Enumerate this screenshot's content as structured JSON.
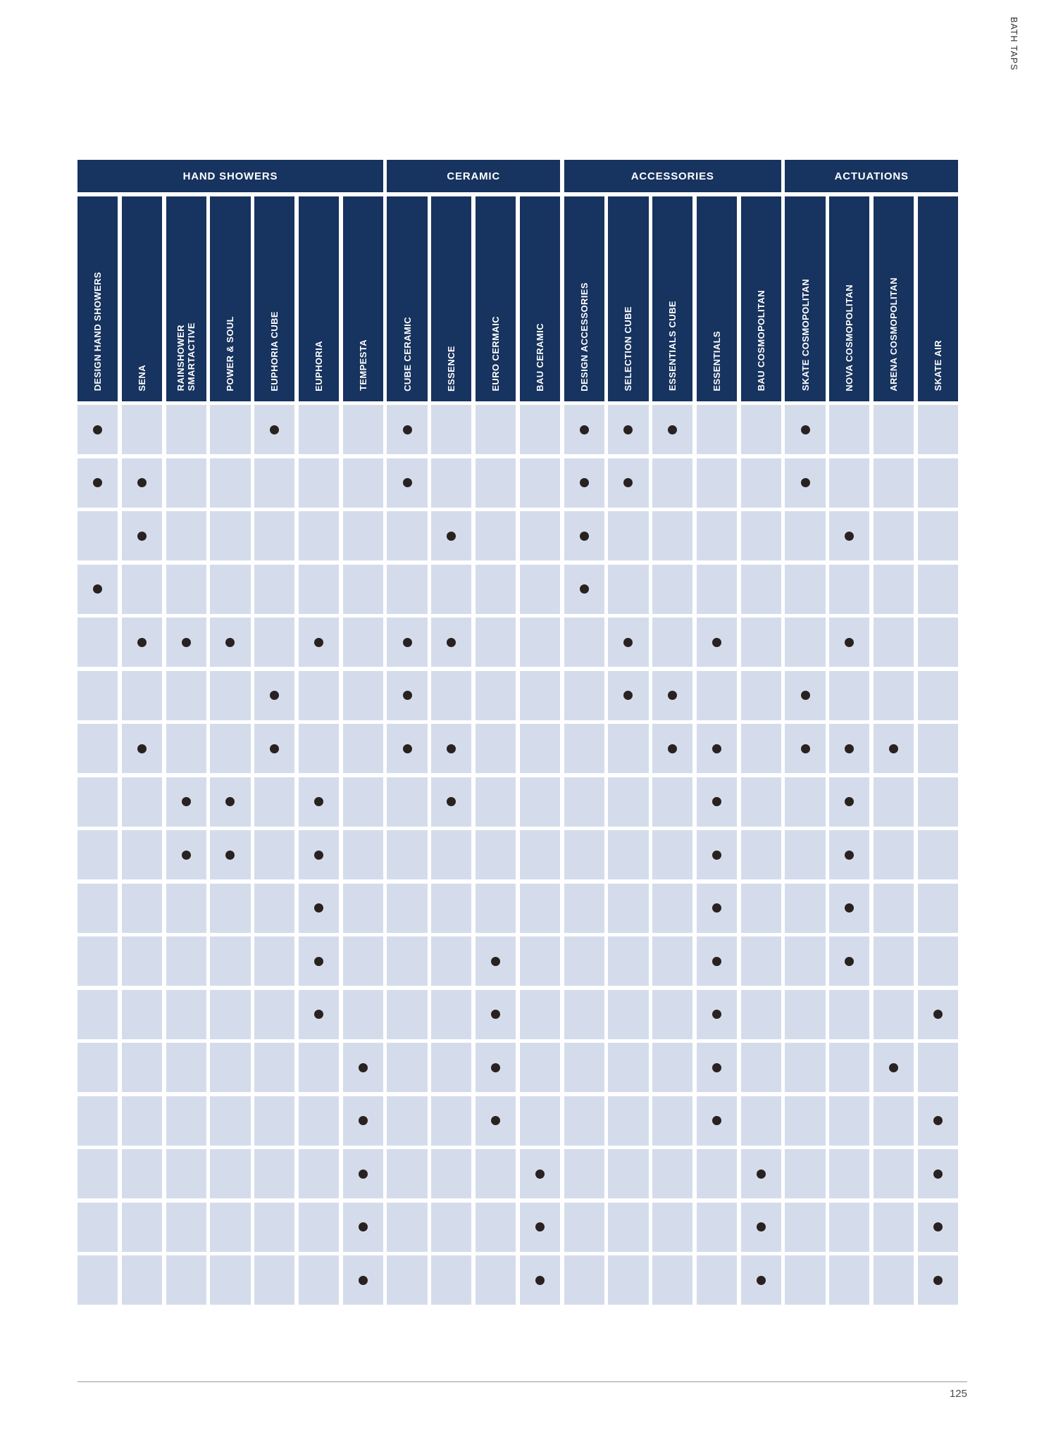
{
  "page": {
    "side_label": "BATH TAPS",
    "page_number": "125"
  },
  "colors": {
    "navy": "#17335f",
    "cell_blue": "#d4dcec",
    "dot": "#292220"
  },
  "table": {
    "groups": [
      {
        "label": "HAND SHOWERS",
        "span": 7
      },
      {
        "label": "CERAMIC",
        "span": 4
      },
      {
        "label": "ACCESSORIES",
        "span": 5
      },
      {
        "label": "ACTUATIONS",
        "span": 4
      }
    ],
    "columns": [
      {
        "lines": [
          "DESIGN HAND SHOWERS"
        ]
      },
      {
        "lines": [
          "SENA"
        ]
      },
      {
        "lines": [
          "RAINSHOWER",
          "SMARTACTIVE"
        ]
      },
      {
        "lines": [
          "POWER & SOUL"
        ]
      },
      {
        "lines": [
          "EUPHORIA CUBE"
        ]
      },
      {
        "lines": [
          "EUPHORIA"
        ]
      },
      {
        "lines": [
          "TEMPESTA"
        ]
      },
      {
        "lines": [
          "CUBE CERAMIC"
        ]
      },
      {
        "lines": [
          "ESSENCE"
        ]
      },
      {
        "lines": [
          "EURO CERMAIC"
        ]
      },
      {
        "lines": [
          "BAU CERAMIC"
        ]
      },
      {
        "lines": [
          "DESIGN ACCESSORIES"
        ]
      },
      {
        "lines": [
          "SELECTION CUBE"
        ]
      },
      {
        "lines": [
          "ESSENTIALS CUBE"
        ]
      },
      {
        "lines": [
          "ESSENTIALS"
        ]
      },
      {
        "lines": [
          "BAU COSMOPOLITAN"
        ]
      },
      {
        "lines": [
          "SKATE COSMOPOLITAN"
        ]
      },
      {
        "lines": [
          "NOVA COSMOPOLITAN"
        ]
      },
      {
        "lines": [
          "ARENA COSMOPOLITAN"
        ]
      },
      {
        "lines": [
          "SKATE AIR"
        ]
      }
    ],
    "rows": [
      {
        "dots": [
          1,
          5,
          8,
          12,
          13,
          14,
          17
        ]
      },
      {
        "dots": [
          1,
          2,
          8,
          12,
          13,
          17
        ]
      },
      {
        "dots": [
          2,
          9,
          12,
          18
        ]
      },
      {
        "dots": [
          1,
          12
        ]
      },
      {
        "dots": [
          2,
          3,
          4,
          6,
          8,
          9,
          13,
          15,
          18
        ]
      },
      {
        "dots": [
          5,
          8,
          13,
          14,
          17
        ]
      },
      {
        "dots": [
          2,
          5,
          8,
          9,
          14,
          15,
          17,
          18,
          19
        ]
      },
      {
        "dots": [
          3,
          4,
          6,
          9,
          15,
          18
        ]
      },
      {
        "dots": [
          3,
          4,
          6,
          15,
          18
        ]
      },
      {
        "dots": [
          6,
          15,
          18
        ]
      },
      {
        "dots": [
          6,
          10,
          15,
          18
        ]
      },
      {
        "dots": [
          6,
          10,
          15,
          20
        ]
      },
      {
        "dots": [
          7,
          10,
          15,
          19
        ]
      },
      {
        "dots": [
          7,
          10,
          15,
          20
        ]
      },
      {
        "dots": [
          7,
          11,
          16,
          20
        ]
      },
      {
        "dots": [
          7,
          11,
          16,
          20
        ]
      },
      {
        "dots": [
          7,
          11,
          16,
          20
        ]
      }
    ]
  }
}
